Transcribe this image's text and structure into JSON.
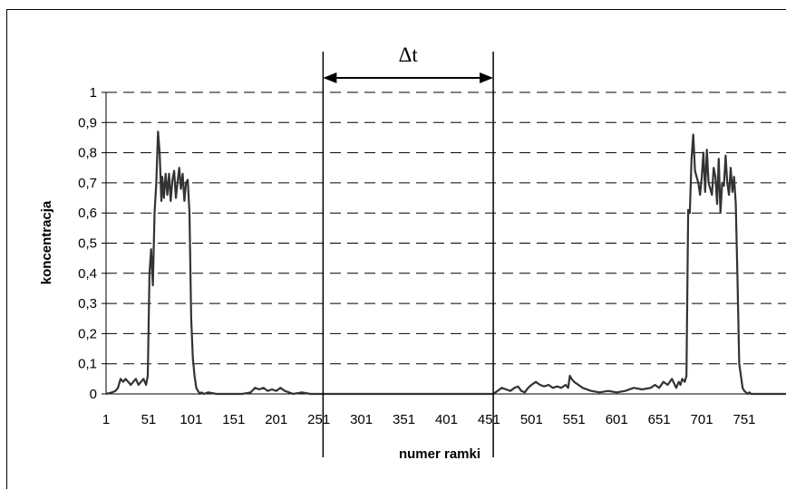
{
  "chart_data": {
    "type": "line",
    "xlabel": "numer ramki",
    "ylabel": "koncentracja",
    "ylim": [
      0,
      1
    ],
    "xlim": [
      1,
      800
    ],
    "grid": "dashed horizontal",
    "yticks": [
      "0",
      "0,1",
      "0,2",
      "0,3",
      "0,4",
      "0,5",
      "0,6",
      "0,7",
      "0,8",
      "0,9",
      "1"
    ],
    "xticks": [
      "1",
      "51",
      "101",
      "151",
      "201",
      "251",
      "301",
      "351",
      "401",
      "451",
      "501",
      "551",
      "601",
      "651",
      "701",
      "751"
    ],
    "xtick_values": [
      1,
      51,
      101,
      151,
      201,
      251,
      301,
      351,
      401,
      451,
      501,
      551,
      601,
      651,
      701,
      751
    ],
    "annotation": {
      "label": "Δt",
      "from_frame": 256,
      "to_frame": 456
    },
    "series": [
      {
        "color": "#333333",
        "x": [
          1,
          8,
          12,
          15,
          18,
          21,
          24,
          27,
          30,
          33,
          36,
          39,
          42,
          45,
          48,
          50,
          52,
          54,
          56,
          58,
          60,
          62,
          64,
          66,
          67,
          69,
          71,
          73,
          75,
          77,
          79,
          81,
          83,
          85,
          87,
          89,
          91,
          93,
          95,
          97,
          99,
          101,
          103,
          105,
          107,
          109,
          111,
          113,
          116,
          121,
          131,
          141,
          151,
          161,
          171,
          176,
          181,
          186,
          191,
          196,
          201,
          206,
          211,
          216,
          221,
          231,
          241,
          251,
          256,
          300,
          350,
          400,
          456,
          461,
          466,
          471,
          476,
          481,
          485,
          489,
          493,
          497,
          501,
          506,
          511,
          516,
          521,
          526,
          531,
          536,
          541,
          544,
          546,
          548,
          551,
          556,
          561,
          571,
          581,
          591,
          601,
          611,
          621,
          631,
          641,
          646,
          651,
          656,
          661,
          666,
          671,
          674,
          676,
          678,
          681,
          683,
          685,
          687,
          689,
          691,
          693,
          695,
          697,
          699,
          701,
          703,
          705,
          707,
          709,
          711,
          713,
          715,
          717,
          719,
          721,
          723,
          725,
          727,
          729,
          731,
          733,
          735,
          737,
          739,
          741,
          743,
          745,
          747,
          749,
          751,
          753,
          755,
          757,
          759,
          761,
          771,
          781,
          791,
          800
        ],
        "values": [
          0.0,
          0.005,
          0.01,
          0.02,
          0.05,
          0.04,
          0.05,
          0.04,
          0.03,
          0.04,
          0.05,
          0.03,
          0.04,
          0.05,
          0.03,
          0.06,
          0.4,
          0.48,
          0.36,
          0.6,
          0.7,
          0.87,
          0.8,
          0.64,
          0.72,
          0.65,
          0.73,
          0.66,
          0.73,
          0.64,
          0.71,
          0.74,
          0.65,
          0.7,
          0.75,
          0.68,
          0.73,
          0.64,
          0.7,
          0.71,
          0.6,
          0.25,
          0.12,
          0.06,
          0.02,
          0.01,
          0.0,
          0.005,
          0.0,
          0.005,
          0.0,
          0.0,
          0.0,
          0.0,
          0.005,
          0.02,
          0.015,
          0.02,
          0.01,
          0.015,
          0.01,
          0.02,
          0.01,
          0.005,
          0.0,
          0.005,
          0.0,
          0.0,
          0.0,
          0.0,
          0.0,
          0.0,
          0.0,
          0.01,
          0.02,
          0.015,
          0.01,
          0.02,
          0.025,
          0.01,
          0.005,
          0.02,
          0.03,
          0.04,
          0.03,
          0.025,
          0.03,
          0.02,
          0.025,
          0.02,
          0.03,
          0.02,
          0.06,
          0.05,
          0.04,
          0.03,
          0.02,
          0.01,
          0.005,
          0.01,
          0.005,
          0.01,
          0.02,
          0.015,
          0.02,
          0.03,
          0.02,
          0.04,
          0.03,
          0.05,
          0.02,
          0.04,
          0.03,
          0.05,
          0.04,
          0.06,
          0.61,
          0.6,
          0.78,
          0.86,
          0.74,
          0.72,
          0.7,
          0.66,
          0.72,
          0.8,
          0.67,
          0.81,
          0.7,
          0.68,
          0.66,
          0.75,
          0.72,
          0.63,
          0.78,
          0.6,
          0.7,
          0.69,
          0.79,
          0.7,
          0.66,
          0.75,
          0.67,
          0.72,
          0.63,
          0.38,
          0.1,
          0.06,
          0.02,
          0.01,
          0.005,
          0.0,
          0.005,
          0.0,
          0.0,
          0.0,
          0.0,
          0.0,
          0.0
        ]
      }
    ]
  }
}
